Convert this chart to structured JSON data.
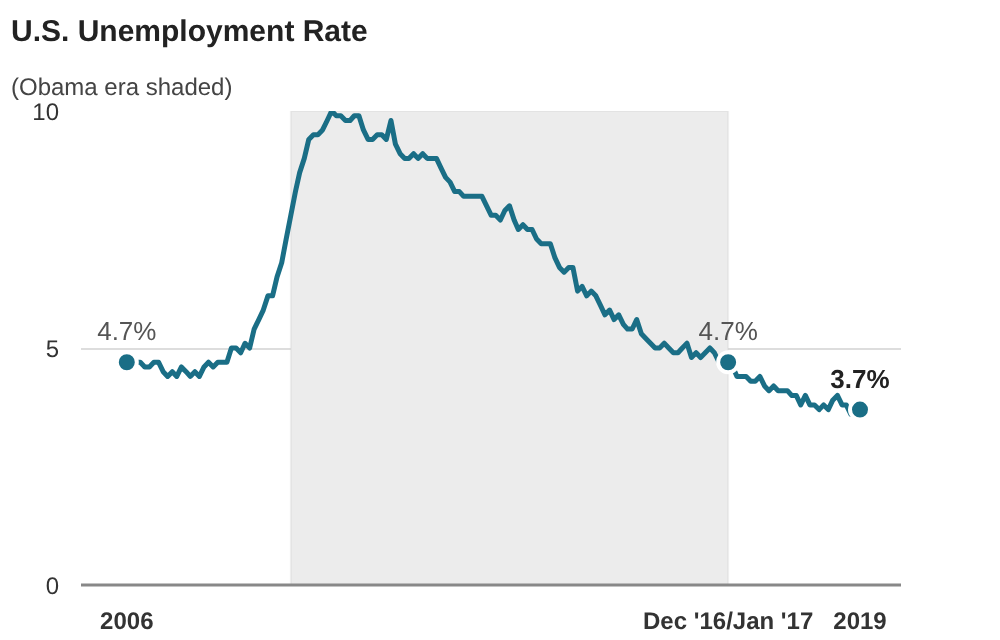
{
  "chart_data": {
    "type": "line",
    "title": "U.S. Unemployment Rate",
    "subtitle": "(Obama era shaded)",
    "x": [
      "2006-01",
      "2006-02",
      "2006-03",
      "2006-04",
      "2006-05",
      "2006-06",
      "2006-07",
      "2006-08",
      "2006-09",
      "2006-10",
      "2006-11",
      "2006-12",
      "2007-01",
      "2007-02",
      "2007-03",
      "2007-04",
      "2007-05",
      "2007-06",
      "2007-07",
      "2007-08",
      "2007-09",
      "2007-10",
      "2007-11",
      "2007-12",
      "2008-01",
      "2008-02",
      "2008-03",
      "2008-04",
      "2008-05",
      "2008-06",
      "2008-07",
      "2008-08",
      "2008-09",
      "2008-10",
      "2008-11",
      "2008-12",
      "2009-01",
      "2009-02",
      "2009-03",
      "2009-04",
      "2009-05",
      "2009-06",
      "2009-07",
      "2009-08",
      "2009-09",
      "2009-10",
      "2009-11",
      "2009-12",
      "2010-01",
      "2010-02",
      "2010-03",
      "2010-04",
      "2010-05",
      "2010-06",
      "2010-07",
      "2010-08",
      "2010-09",
      "2010-10",
      "2010-11",
      "2010-12",
      "2011-01",
      "2011-02",
      "2011-03",
      "2011-04",
      "2011-05",
      "2011-06",
      "2011-07",
      "2011-08",
      "2011-09",
      "2011-10",
      "2011-11",
      "2011-12",
      "2012-01",
      "2012-02",
      "2012-03",
      "2012-04",
      "2012-05",
      "2012-06",
      "2012-07",
      "2012-08",
      "2012-09",
      "2012-10",
      "2012-11",
      "2012-12",
      "2013-01",
      "2013-02",
      "2013-03",
      "2013-04",
      "2013-05",
      "2013-06",
      "2013-07",
      "2013-08",
      "2013-09",
      "2013-10",
      "2013-11",
      "2013-12",
      "2014-01",
      "2014-02",
      "2014-03",
      "2014-04",
      "2014-05",
      "2014-06",
      "2014-07",
      "2014-08",
      "2014-09",
      "2014-10",
      "2014-11",
      "2014-12",
      "2015-01",
      "2015-02",
      "2015-03",
      "2015-04",
      "2015-05",
      "2015-06",
      "2015-07",
      "2015-08",
      "2015-09",
      "2015-10",
      "2015-11",
      "2015-12",
      "2016-01",
      "2016-02",
      "2016-03",
      "2016-04",
      "2016-05",
      "2016-06",
      "2016-07",
      "2016-08",
      "2016-09",
      "2016-10",
      "2016-11",
      "2016-12",
      "2017-01",
      "2017-02",
      "2017-03",
      "2017-04",
      "2017-05",
      "2017-06",
      "2017-07",
      "2017-08",
      "2017-09",
      "2017-10",
      "2017-11",
      "2017-12",
      "2018-01",
      "2018-02",
      "2018-03",
      "2018-04",
      "2018-05",
      "2018-06",
      "2018-07",
      "2018-08",
      "2018-09",
      "2018-10",
      "2018-11",
      "2018-12",
      "2019-01",
      "2019-02",
      "2019-03",
      "2019-04",
      "2019-05",
      "2019-06"
    ],
    "series": [
      {
        "color": "#1a6e86",
        "values": [
          4.7,
          4.8,
          4.7,
          4.7,
          4.6,
          4.6,
          4.7,
          4.7,
          4.5,
          4.4,
          4.5,
          4.4,
          4.6,
          4.5,
          4.4,
          4.5,
          4.4,
          4.6,
          4.7,
          4.6,
          4.7,
          4.7,
          4.7,
          5.0,
          5.0,
          4.9,
          5.1,
          5.0,
          5.4,
          5.6,
          5.8,
          6.1,
          6.1,
          6.5,
          6.8,
          7.3,
          7.8,
          8.3,
          8.7,
          9.0,
          9.4,
          9.5,
          9.5,
          9.6,
          9.8,
          10.0,
          9.9,
          9.9,
          9.8,
          9.8,
          9.9,
          9.9,
          9.6,
          9.4,
          9.4,
          9.5,
          9.5,
          9.4,
          9.8,
          9.3,
          9.1,
          9.0,
          9.0,
          9.1,
          9.0,
          9.1,
          9.0,
          9.0,
          9.0,
          8.8,
          8.6,
          8.5,
          8.3,
          8.3,
          8.2,
          8.2,
          8.2,
          8.2,
          8.2,
          8.0,
          7.8,
          7.8,
          7.7,
          7.9,
          8.0,
          7.7,
          7.5,
          7.6,
          7.5,
          7.5,
          7.3,
          7.2,
          7.2,
          7.2,
          6.9,
          6.7,
          6.6,
          6.7,
          6.7,
          6.2,
          6.3,
          6.1,
          6.2,
          6.1,
          5.9,
          5.7,
          5.8,
          5.6,
          5.7,
          5.5,
          5.4,
          5.4,
          5.6,
          5.3,
          5.2,
          5.1,
          5.0,
          5.0,
          5.1,
          5.0,
          4.9,
          4.9,
          5.0,
          5.1,
          4.8,
          4.9,
          4.8,
          4.9,
          5.0,
          4.9,
          4.7,
          4.7,
          4.7,
          4.6,
          4.4,
          4.4,
          4.4,
          4.3,
          4.3,
          4.4,
          4.2,
          4.1,
          4.2,
          4.1,
          4.1,
          4.1,
          4.0,
          4.0,
          3.8,
          4.0,
          3.8,
          3.8,
          3.7,
          3.8,
          3.7,
          3.9,
          4.0,
          3.8,
          3.8,
          3.6,
          3.6,
          3.7
        ]
      },
      {
        "type": "scatter",
        "marker": "circle",
        "color": "#1a6e86",
        "x": [
          "2006-01",
          "2017-01",
          "2019-06"
        ],
        "values": [
          4.7,
          4.7,
          3.7
        ]
      }
    ],
    "annotations": [
      {
        "text": "4.7%",
        "x": "2006-01",
        "y": 4.7
      },
      {
        "text": "4.7%",
        "x": "2017-01",
        "y": 4.7
      },
      {
        "text": "3.7%",
        "x": "2019-06",
        "y": 3.7
      }
    ],
    "bands": [
      {
        "axis": "x",
        "from": "2009-01",
        "to": "2017-01",
        "color": "#ececec"
      }
    ],
    "xlim": [
      "2005-03",
      "2020-03"
    ],
    "xticks": [
      {
        "value": "2006-01",
        "label": "2006"
      },
      {
        "value": "2017-01",
        "label": "Dec '16/Jan '17"
      },
      {
        "value": "2019-06",
        "label": "2019"
      }
    ],
    "ylim": [
      0,
      10
    ],
    "yticks": [
      0,
      5,
      10
    ],
    "grid": "y",
    "line_style": "solid"
  }
}
